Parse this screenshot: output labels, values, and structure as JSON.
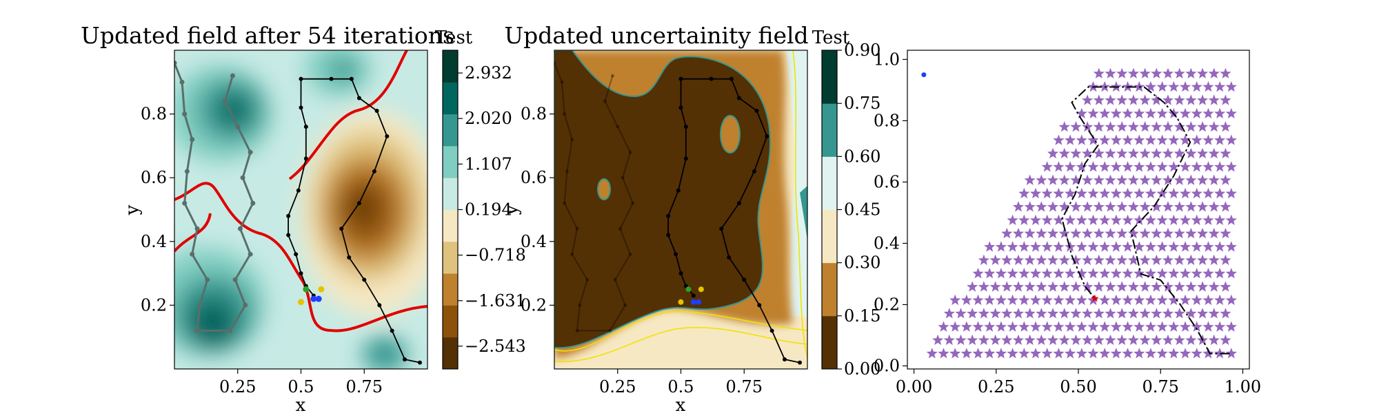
{
  "chart_data": [
    {
      "type": "contour",
      "title": "Updated field after 54 iterations",
      "xlabel": "x",
      "ylabel": "y",
      "xlim": [
        0.0,
        1.0
      ],
      "ylim": [
        0.0,
        1.0
      ],
      "xticks": [
        0.25,
        0.5,
        0.75
      ],
      "yticks": [
        0.2,
        0.4,
        0.6,
        0.8
      ],
      "threshold_contour_color": "#e00000",
      "colormap": "BrBG",
      "colorbar": {
        "title": "Test",
        "tick_values": [
          2.932,
          2.02,
          1.107,
          0.194,
          -0.718,
          -1.631,
          -2.543
        ],
        "tick_labels": [
          "2.932",
          "2.020",
          "1.107",
          "0.194",
          "−0.718",
          "−1.631",
          "−2.543"
        ],
        "range": [
          -3.0,
          3.388
        ],
        "level_colors": [
          "#543005",
          "#8c510a",
          "#bf812d",
          "#dfc27d",
          "#f6e8c3",
          "#c7eae5",
          "#80cdc1",
          "#35978f",
          "#01665e",
          "#003c30"
        ]
      },
      "path_current": [
        [
          0.55,
          0.23
        ],
        [
          0.52,
          0.26
        ],
        [
          0.5,
          0.3
        ],
        [
          0.48,
          0.36
        ],
        [
          0.45,
          0.42
        ],
        [
          0.45,
          0.48
        ],
        [
          0.49,
          0.56
        ],
        [
          0.52,
          0.66
        ],
        [
          0.52,
          0.76
        ],
        [
          0.5,
          0.82
        ],
        [
          0.5,
          0.91
        ],
        [
          0.62,
          0.91
        ],
        [
          0.7,
          0.91
        ],
        [
          0.73,
          0.85
        ],
        [
          0.8,
          0.81
        ],
        [
          0.84,
          0.73
        ],
        [
          0.79,
          0.62
        ],
        [
          0.73,
          0.52
        ],
        [
          0.66,
          0.44
        ],
        [
          0.69,
          0.35
        ],
        [
          0.75,
          0.28
        ],
        [
          0.81,
          0.2
        ],
        [
          0.86,
          0.12
        ],
        [
          0.91,
          0.03
        ],
        [
          0.97,
          0.02
        ]
      ],
      "path_previous": [
        [
          0.0,
          0.96
        ],
        [
          0.03,
          0.9
        ],
        [
          0.04,
          0.8
        ],
        [
          0.07,
          0.72
        ],
        [
          0.05,
          0.62
        ],
        [
          0.04,
          0.52
        ],
        [
          0.09,
          0.44
        ],
        [
          0.07,
          0.36
        ],
        [
          0.13,
          0.28
        ],
        [
          0.1,
          0.2
        ],
        [
          0.09,
          0.12
        ],
        [
          0.22,
          0.12
        ],
        [
          0.28,
          0.2
        ],
        [
          0.24,
          0.28
        ],
        [
          0.3,
          0.36
        ],
        [
          0.26,
          0.44
        ],
        [
          0.31,
          0.52
        ],
        [
          0.27,
          0.6
        ],
        [
          0.3,
          0.68
        ],
        [
          0.25,
          0.76
        ],
        [
          0.2,
          0.84
        ],
        [
          0.23,
          0.92
        ]
      ],
      "marker_points": [
        {
          "x": 0.52,
          "y": 0.25,
          "color": "#2ca02c"
        },
        {
          "x": 0.55,
          "y": 0.22,
          "color": "#1f3fff"
        },
        {
          "x": 0.57,
          "y": 0.22,
          "color": "#1f3fff"
        },
        {
          "x": 0.5,
          "y": 0.21,
          "color": "#e6c200"
        },
        {
          "x": 0.58,
          "y": 0.25,
          "color": "#e6c200"
        }
      ]
    },
    {
      "type": "contour",
      "title": "Updated uncertainity field",
      "xlabel": "x",
      "ylabel": "y",
      "xlim": [
        0.0,
        1.0
      ],
      "ylim": [
        0.0,
        1.0
      ],
      "xticks": [
        0.25,
        0.5,
        0.75
      ],
      "yticks": [
        0.2,
        0.4,
        0.6,
        0.8
      ],
      "colorbar": {
        "title": "Test",
        "tick_values": [
          0.0,
          0.15,
          0.3,
          0.45,
          0.6,
          0.75,
          0.9
        ],
        "tick_labels": [
          "0.00",
          "0.15",
          "0.30",
          "0.45",
          "0.60",
          "0.75",
          "0.90"
        ],
        "range": [
          0.0,
          0.9
        ],
        "level_colors": [
          "#543005",
          "#bf812d",
          "#f6e8c3",
          "#e0f3f0",
          "#35978f",
          "#003c30"
        ]
      },
      "marker_points": [
        {
          "x": 0.53,
          "y": 0.25,
          "color": "#2ca02c"
        },
        {
          "x": 0.55,
          "y": 0.21,
          "color": "#1f3fff"
        },
        {
          "x": 0.57,
          "y": 0.21,
          "color": "#1f3fff"
        },
        {
          "x": 0.5,
          "y": 0.21,
          "color": "#e6c200"
        },
        {
          "x": 0.58,
          "y": 0.25,
          "color": "#e6c200"
        }
      ]
    },
    {
      "type": "scatter",
      "xlim": [
        -0.02,
        1.02
      ],
      "ylim": [
        -0.01,
        1.03
      ],
      "xticks": [
        0.0,
        0.25,
        0.5,
        0.75,
        1.0
      ],
      "xtick_labels": [
        "0.00",
        "0.25",
        "0.50",
        "0.75",
        "1.00"
      ],
      "yticks": [
        0.0,
        0.2,
        0.4,
        0.6,
        0.8,
        1.0
      ],
      "ytick_labels": [
        "0.0",
        "0.2",
        "0.4",
        "0.6",
        "0.8",
        "1.0"
      ],
      "grid": false,
      "star_color": "#9467bd",
      "grid_points": {
        "x_start": 0.02,
        "x_step": 0.035,
        "x_end": 0.98,
        "y_start": 0.04,
        "y_step": 0.0435,
        "rows": 22,
        "boundary_slope": 1.72
      },
      "blue_point": {
        "x": 0.03,
        "y": 0.95,
        "color": "#1f3fff"
      },
      "red_point": {
        "x": 0.55,
        "y": 0.22,
        "color": "#e00000"
      },
      "path": [
        [
          0.96,
          0.04
        ],
        [
          0.9,
          0.04
        ],
        [
          0.86,
          0.12
        ],
        [
          0.81,
          0.2
        ],
        [
          0.75,
          0.28
        ],
        [
          0.69,
          0.3
        ],
        [
          0.66,
          0.44
        ],
        [
          0.73,
          0.52
        ],
        [
          0.79,
          0.62
        ],
        [
          0.84,
          0.73
        ],
        [
          0.8,
          0.81
        ],
        [
          0.76,
          0.86
        ],
        [
          0.7,
          0.91
        ],
        [
          0.62,
          0.91
        ],
        [
          0.53,
          0.91
        ],
        [
          0.48,
          0.86
        ],
        [
          0.5,
          0.82
        ],
        [
          0.56,
          0.72
        ],
        [
          0.52,
          0.66
        ],
        [
          0.49,
          0.56
        ],
        [
          0.45,
          0.48
        ],
        [
          0.48,
          0.36
        ],
        [
          0.52,
          0.26
        ],
        [
          0.55,
          0.22
        ]
      ]
    }
  ]
}
